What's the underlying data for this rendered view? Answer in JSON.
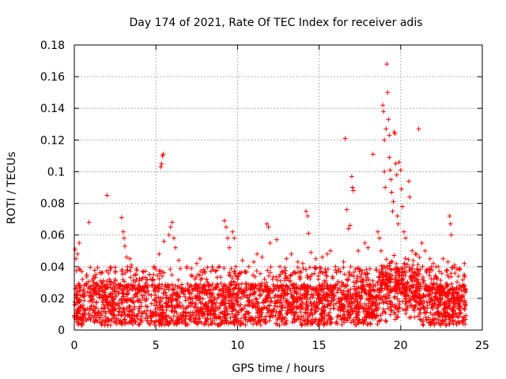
{
  "chart_data": {
    "type": "scatter",
    "title": "Day 174 of 2021, Rate Of TEC Index for receiver adis",
    "xlabel": "GPS time / hours",
    "ylabel": "ROTI / TECUs",
    "xlim": [
      0,
      25
    ],
    "ylim": [
      0,
      0.18
    ],
    "x_ticks": [
      0,
      5,
      10,
      15,
      20,
      25
    ],
    "x_tick_labels": [
      "0",
      "5",
      "10",
      "15",
      "20",
      "25"
    ],
    "y_ticks": [
      0,
      0.02,
      0.04,
      0.06,
      0.08,
      0.1,
      0.12,
      0.14,
      0.16,
      0.18
    ],
    "y_tick_labels": [
      "0",
      "0.02",
      "0.04",
      "0.06",
      "0.08",
      "0.1",
      "0.12",
      "0.14",
      "0.16",
      "0.18"
    ],
    "grid": true,
    "marker": "+",
    "color": "#ff0000",
    "series": [
      {
        "name": "ROTI",
        "points": [
          [
            0.05,
            0.051
          ],
          [
            0.1,
            0.045
          ],
          [
            0.2,
            0.048
          ],
          [
            0.3,
            0.055
          ],
          [
            0.35,
            0.038
          ],
          [
            0.5,
            0.032
          ],
          [
            0.9,
            0.068
          ],
          [
            1.2,
            0.034
          ],
          [
            1.6,
            0.031
          ],
          [
            2.0,
            0.085
          ],
          [
            2.5,
            0.032
          ],
          [
            2.9,
            0.071
          ],
          [
            3.0,
            0.062
          ],
          [
            3.05,
            0.058
          ],
          [
            3.1,
            0.053
          ],
          [
            3.2,
            0.046
          ],
          [
            3.4,
            0.045
          ],
          [
            3.5,
            0.041
          ],
          [
            3.8,
            0.032
          ],
          [
            4.2,
            0.033
          ],
          [
            4.6,
            0.035
          ],
          [
            4.9,
            0.04
          ],
          [
            5.2,
            0.048
          ],
          [
            5.3,
            0.103
          ],
          [
            5.35,
            0.105
          ],
          [
            5.4,
            0.11
          ],
          [
            5.45,
            0.111
          ],
          [
            5.5,
            0.056
          ],
          [
            5.8,
            0.06
          ],
          [
            5.9,
            0.065
          ],
          [
            6.0,
            0.068
          ],
          [
            6.1,
            0.058
          ],
          [
            6.2,
            0.052
          ],
          [
            6.4,
            0.044
          ],
          [
            6.9,
            0.04
          ],
          [
            7.5,
            0.042
          ],
          [
            7.7,
            0.045
          ],
          [
            8.0,
            0.036
          ],
          [
            8.5,
            0.038
          ],
          [
            8.9,
            0.04
          ],
          [
            9.2,
            0.069
          ],
          [
            9.3,
            0.065
          ],
          [
            9.4,
            0.058
          ],
          [
            9.5,
            0.052
          ],
          [
            9.7,
            0.062
          ],
          [
            9.8,
            0.058
          ],
          [
            9.9,
            0.04
          ],
          [
            10.3,
            0.044
          ],
          [
            10.7,
            0.04
          ],
          [
            11.0,
            0.043
          ],
          [
            11.2,
            0.048
          ],
          [
            11.5,
            0.046
          ],
          [
            11.8,
            0.067
          ],
          [
            11.9,
            0.065
          ],
          [
            12.0,
            0.055
          ],
          [
            12.4,
            0.057
          ],
          [
            12.6,
            0.04
          ],
          [
            13.0,
            0.045
          ],
          [
            13.3,
            0.048
          ],
          [
            13.7,
            0.043
          ],
          [
            14.0,
            0.042
          ],
          [
            14.2,
            0.075
          ],
          [
            14.3,
            0.072
          ],
          [
            14.35,
            0.061
          ],
          [
            14.5,
            0.049
          ],
          [
            14.8,
            0.045
          ],
          [
            15.2,
            0.046
          ],
          [
            15.5,
            0.048
          ],
          [
            15.7,
            0.05
          ],
          [
            16.0,
            0.04
          ],
          [
            16.5,
            0.043
          ],
          [
            16.6,
            0.121
          ],
          [
            16.7,
            0.076
          ],
          [
            16.8,
            0.064
          ],
          [
            16.9,
            0.066
          ],
          [
            17.0,
            0.097
          ],
          [
            17.05,
            0.09
          ],
          [
            17.1,
            0.088
          ],
          [
            17.4,
            0.05
          ],
          [
            17.8,
            0.055
          ],
          [
            18.0,
            0.052
          ],
          [
            18.3,
            0.111
          ],
          [
            18.6,
            0.062
          ],
          [
            18.7,
            0.058
          ],
          [
            18.8,
            0.05
          ],
          [
            18.9,
            0.142
          ],
          [
            18.95,
            0.138
          ],
          [
            19.0,
            0.12
          ],
          [
            19.0,
            0.1
          ],
          [
            19.05,
            0.09
          ],
          [
            19.1,
            0.127
          ],
          [
            19.15,
            0.168
          ],
          [
            19.2,
            0.15
          ],
          [
            19.25,
            0.133
          ],
          [
            19.3,
            0.123
          ],
          [
            19.3,
            0.109
          ],
          [
            19.35,
            0.101
          ],
          [
            19.4,
            0.095
          ],
          [
            19.45,
            0.087
          ],
          [
            19.5,
            0.075
          ],
          [
            19.55,
            0.081
          ],
          [
            19.6,
            0.125
          ],
          [
            19.65,
            0.124
          ],
          [
            19.7,
            0.105
          ],
          [
            19.75,
            0.098
          ],
          [
            19.8,
            0.072
          ],
          [
            19.85,
            0.067
          ],
          [
            19.9,
            0.106
          ],
          [
            20.0,
            0.101
          ],
          [
            20.05,
            0.089
          ],
          [
            20.1,
            0.078
          ],
          [
            20.2,
            0.062
          ],
          [
            20.3,
            0.058
          ],
          [
            20.5,
            0.094
          ],
          [
            20.55,
            0.084
          ],
          [
            20.7,
            0.05
          ],
          [
            20.9,
            0.048
          ],
          [
            21.1,
            0.127
          ],
          [
            21.3,
            0.055
          ],
          [
            21.5,
            0.05
          ],
          [
            21.8,
            0.045
          ],
          [
            22.0,
            0.042
          ],
          [
            22.3,
            0.04
          ],
          [
            22.6,
            0.045
          ],
          [
            22.9,
            0.043
          ],
          [
            23.0,
            0.072
          ],
          [
            23.05,
            0.067
          ],
          [
            23.1,
            0.06
          ],
          [
            23.3,
            0.041
          ],
          [
            23.6,
            0.038
          ],
          [
            23.9,
            0.042
          ]
        ]
      }
    ],
    "background_band": {
      "description": "dense cloud of observations across the full day",
      "x_range": [
        0,
        24
      ],
      "median_roti": 0.016,
      "spread_roti": 0.013
    }
  }
}
